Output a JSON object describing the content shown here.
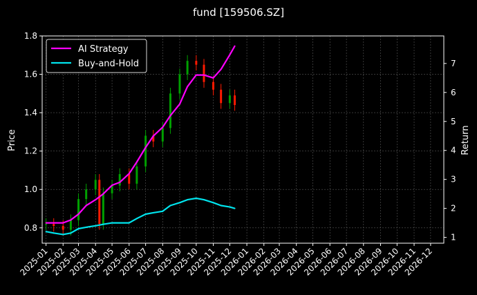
{
  "title": "fund [159506.SZ]",
  "colors": {
    "background": "#000000",
    "axis": "#ffffff",
    "grid": "#5a5a5a",
    "ai_strategy": "#ff00ff",
    "buy_and_hold": "#00e5ee",
    "candle_up": "#00a000",
    "candle_down": "#ff1a00"
  },
  "chart_data": {
    "type": "line",
    "title": "fund [159506.SZ]",
    "ylabel": "Price",
    "ylabel_right": "Return",
    "ylim": [
      0.72,
      1.8
    ],
    "ylim_right": [
      0.8,
      7.95
    ],
    "yticks": [
      0.8,
      1.0,
      1.2,
      1.4,
      1.6,
      1.8
    ],
    "yticks_right": [
      1,
      2,
      3,
      4,
      5,
      6,
      7
    ],
    "xticks": [
      "2025-01",
      "2025-02",
      "2025-03",
      "2025-04",
      "2025-05",
      "2025-06",
      "2025-07",
      "2025-08",
      "2025-09",
      "2025-10",
      "2025-11",
      "2025-12",
      "2026-01",
      "2026-02",
      "2026-03",
      "2026-04",
      "2026-05",
      "2026-06",
      "2026-07",
      "2026-08",
      "2026-09",
      "2026-10",
      "2026-11",
      "2026-12"
    ],
    "grid": true,
    "legend_position": "top-left",
    "price_series": {
      "style": "candlestick",
      "x": [
        "2025-01-01",
        "2025-01-15",
        "2025-02-01",
        "2025-02-15",
        "2025-03-01",
        "2025-03-15",
        "2025-04-01",
        "2025-04-08",
        "2025-04-15",
        "2025-05-01",
        "2025-05-15",
        "2025-06-01",
        "2025-06-15",
        "2025-07-01",
        "2025-07-15",
        "2025-08-01",
        "2025-08-15",
        "2025-09-01",
        "2025-09-15",
        "2025-10-01",
        "2025-10-15",
        "2025-11-01",
        "2025-11-15",
        "2025-12-01",
        "2025-12-10"
      ],
      "close": [
        0.82,
        0.81,
        0.79,
        0.84,
        0.95,
        1.0,
        1.05,
        0.82,
        0.98,
        1.02,
        1.08,
        1.03,
        1.12,
        1.28,
        1.25,
        1.32,
        1.5,
        1.6,
        1.67,
        1.65,
        1.56,
        1.52,
        1.45,
        1.49,
        1.44
      ]
    },
    "series": [
      {
        "name": "AI Strategy",
        "axis": "right",
        "x": [
          "2025-01-01",
          "2025-01-15",
          "2025-02-01",
          "2025-02-15",
          "2025-03-01",
          "2025-03-15",
          "2025-04-01",
          "2025-04-15",
          "2025-05-01",
          "2025-05-15",
          "2025-06-01",
          "2025-06-15",
          "2025-07-01",
          "2025-07-15",
          "2025-08-01",
          "2025-08-15",
          "2025-09-01",
          "2025-09-15",
          "2025-10-01",
          "2025-10-15",
          "2025-11-01",
          "2025-11-15",
          "2025-12-01",
          "2025-12-10"
        ],
        "values": [
          1.5,
          1.5,
          1.5,
          1.6,
          1.8,
          2.1,
          2.3,
          2.5,
          2.8,
          2.9,
          3.2,
          3.6,
          4.1,
          4.5,
          4.8,
          5.2,
          5.6,
          6.2,
          6.6,
          6.6,
          6.5,
          6.8,
          7.3,
          7.6
        ]
      },
      {
        "name": "Buy-and-Hold",
        "axis": "right",
        "x": [
          "2025-01-01",
          "2025-01-15",
          "2025-02-01",
          "2025-02-15",
          "2025-03-01",
          "2025-03-15",
          "2025-04-01",
          "2025-04-15",
          "2025-05-01",
          "2025-05-15",
          "2025-06-01",
          "2025-06-15",
          "2025-07-01",
          "2025-07-15",
          "2025-08-01",
          "2025-08-15",
          "2025-09-01",
          "2025-09-15",
          "2025-10-01",
          "2025-10-15",
          "2025-11-01",
          "2025-11-15",
          "2025-12-01",
          "2025-12-10"
        ],
        "values": [
          1.2,
          1.15,
          1.1,
          1.15,
          1.3,
          1.35,
          1.4,
          1.45,
          1.5,
          1.5,
          1.5,
          1.65,
          1.8,
          1.85,
          1.9,
          2.1,
          2.2,
          2.3,
          2.35,
          2.3,
          2.2,
          2.1,
          2.05,
          2.0
        ]
      }
    ]
  }
}
